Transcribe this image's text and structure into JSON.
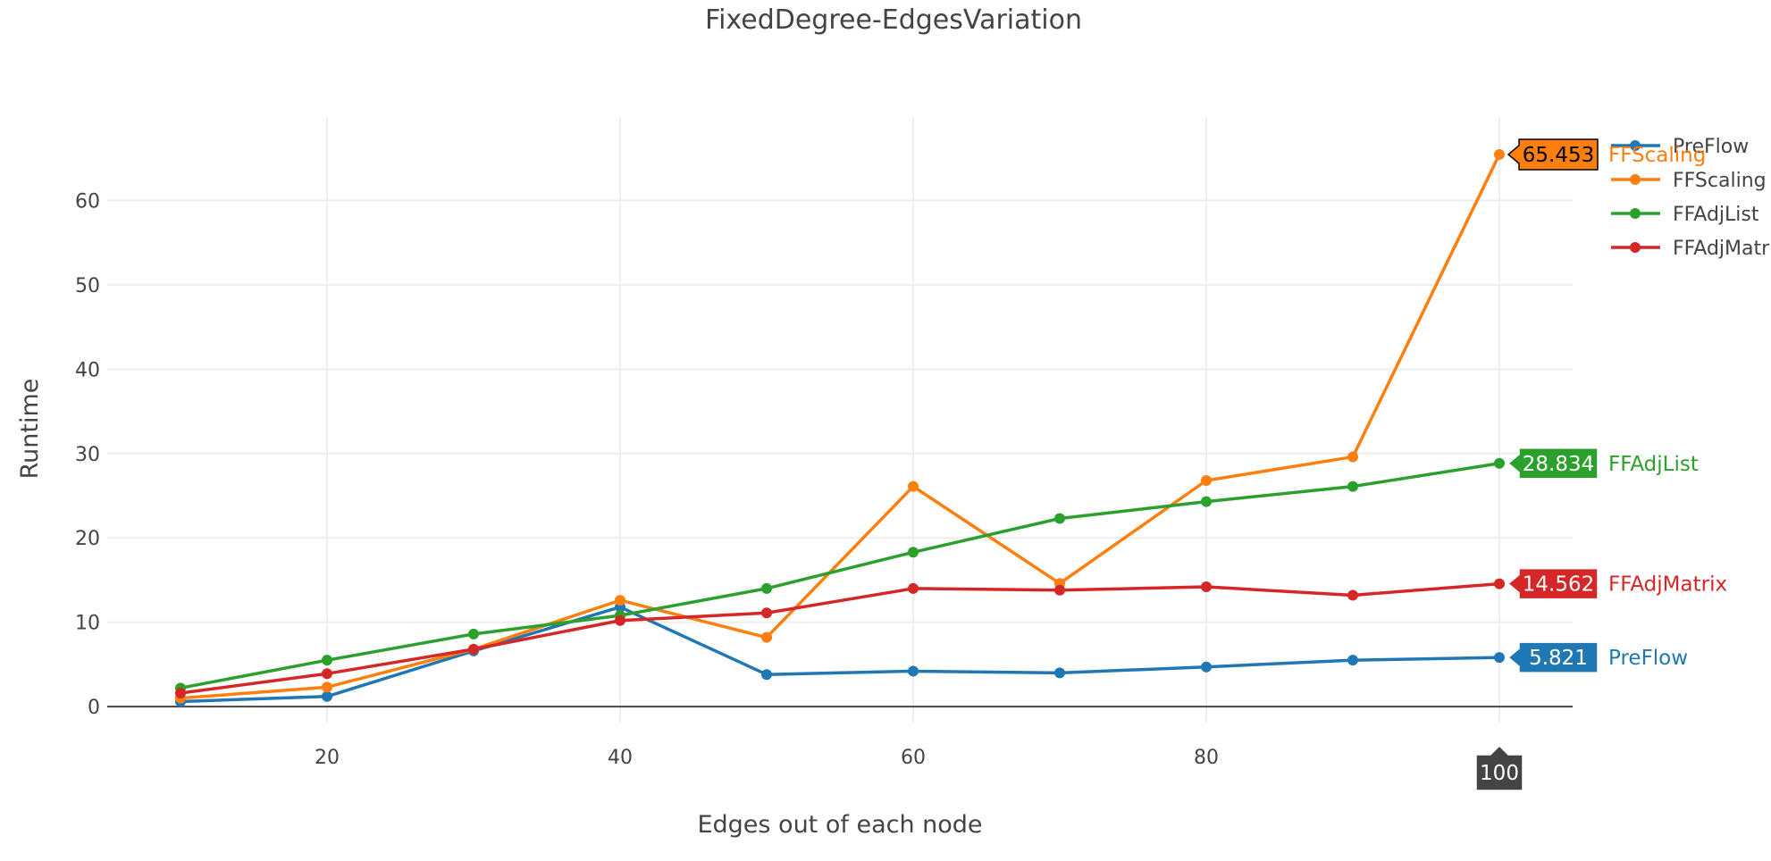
{
  "chart_data": {
    "type": "line",
    "title": "FixedDegree-EdgesVariation",
    "xlabel": "Edges out of each node",
    "ylabel": "Runtime",
    "xlim": [
      5,
      105
    ],
    "ylim": [
      -2,
      70
    ],
    "x_ticks": [
      20,
      40,
      60,
      80,
      100
    ],
    "y_ticks": [
      0,
      10,
      20,
      30,
      40,
      50,
      60
    ],
    "grid": true,
    "legend_position": "top-right",
    "x": [
      10,
      20,
      30,
      40,
      50,
      60,
      70,
      80,
      90,
      100
    ],
    "series": [
      {
        "name": "PreFlow",
        "color": "#1f77b4",
        "values": [
          0.6,
          1.2,
          6.6,
          11.8,
          3.8,
          4.2,
          4.0,
          4.7,
          5.5,
          5.821
        ]
      },
      {
        "name": "FFScaling",
        "color": "#ff7f0e",
        "values": [
          1.0,
          2.3,
          6.8,
          12.6,
          8.2,
          26.1,
          14.6,
          26.8,
          29.6,
          65.453
        ]
      },
      {
        "name": "FFAdjList",
        "color": "#2ca02c",
        "values": [
          2.2,
          5.5,
          8.6,
          10.8,
          14.0,
          18.3,
          22.3,
          24.3,
          26.1,
          28.834
        ]
      },
      {
        "name": "FFAdjMatrix",
        "color": "#d62728",
        "values": [
          1.6,
          3.9,
          6.8,
          10.2,
          11.1,
          14.0,
          13.8,
          14.2,
          13.2,
          14.562
        ]
      }
    ],
    "hover": {
      "x_label": "100",
      "labels": [
        {
          "series": "FFScaling",
          "value": "65.453",
          "name": "FFScaling"
        },
        {
          "series": "FFAdjList",
          "value": "28.834",
          "name": "FFAdjList"
        },
        {
          "series": "FFAdjMatrix",
          "value": "14.562",
          "name": "FFAdjMatrix"
        },
        {
          "series": "PreFlow",
          "value": "5.821",
          "name": "PreFlow"
        }
      ]
    }
  }
}
